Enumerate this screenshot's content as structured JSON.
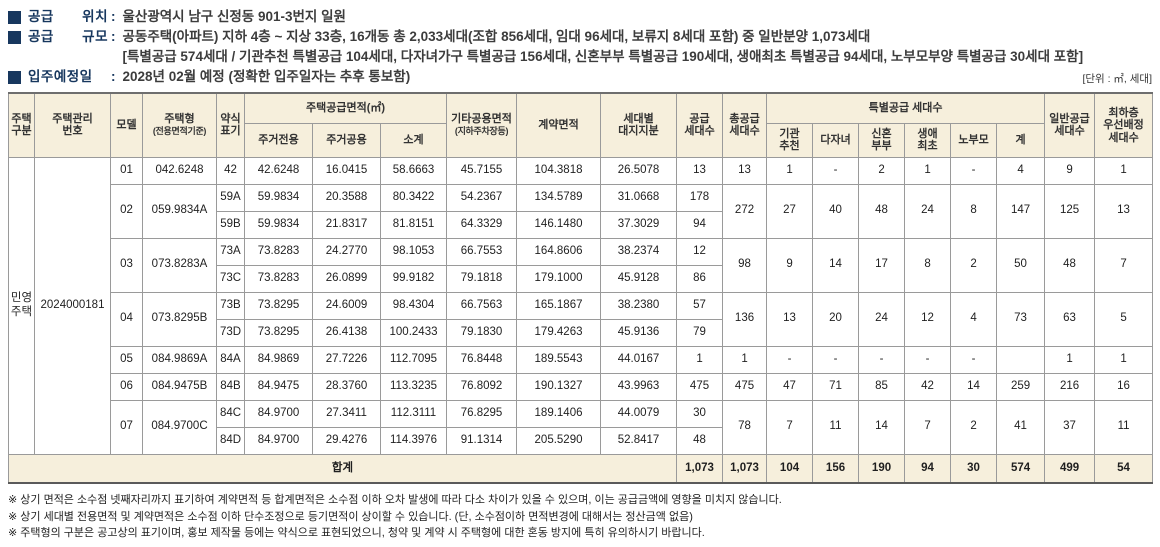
{
  "page": {
    "colon": ":",
    "unit_note": "[단위 : ㎡, 세대]"
  },
  "info": {
    "lines": [
      {
        "label": "공급 위치",
        "value": "울산광역시 남구 신정동 901-3번지 일원"
      },
      {
        "label": "공급 규모",
        "value": "공동주택(아파트) 지하 4층 ~ 지상 33층, 16개동 총 2,033세대(조합 856세대, 임대 96세대, 보류지 8세대 포함) 중 일반분양 1,073세대",
        "value2": "[특별공급 574세대 / 기관추천 특별공급 104세대, 다자녀가구 특별공급 156세대, 신혼부부 특별공급 190세대, 생애최초 특별공급 94세대, 노부모부양 특별공급 30세대 포함]"
      },
      {
        "label": "입주예정일",
        "value": "2028년 02월 예정 (정확한 입주일자는 추후 통보함)"
      }
    ]
  },
  "table": {
    "headers": {
      "housing_division": "주택\n구분",
      "management_number": "주택관리\n번호",
      "model": "모델",
      "unit_type": "주택형",
      "unit_type_sub": "(전용면적기준)",
      "abbr": "약식\n표기",
      "supply_area_group": "주택공급면적(㎡)",
      "exclusive": "주거전용",
      "common": "주거공용",
      "subtotal": "소계",
      "other_common": "기타공용면적",
      "other_common_sub": "(지하주차장등)",
      "contract": "계약면적",
      "land_share": "세대별\n대지지분",
      "supply_count": "공급\n세대수",
      "total_supply": "총공급\n세대수",
      "special_group": "특별공급 세대수",
      "special": [
        "기관\n추천",
        "다자녀",
        "신혼\n부부",
        "생애\n최초",
        "노부모",
        "계"
      ],
      "general_supply": "일반공급\n세대수",
      "lowest_floor": "최하층\n우선배정\n세대수"
    },
    "housing_division": "민영\n주택",
    "management_number": "2024000181",
    "special_keys": [
      "institution",
      "multi-child",
      "newlywed",
      "first-time",
      "elderly-parent",
      "sum"
    ],
    "groups": [
      {
        "model": "01",
        "unit_type": "042.6248",
        "rows": [
          {
            "abbr": "42",
            "exclusive": "42.6248",
            "common": "16.0415",
            "subtotal": "58.6663",
            "other": "45.7155",
            "contract": "104.3818",
            "land_share": "26.5078",
            "supply": "13"
          }
        ],
        "total_supply": "13",
        "special": [
          "1",
          "-",
          "2",
          "1",
          "-",
          "4"
        ],
        "general": "9",
        "lowest": "1"
      },
      {
        "model": "02",
        "unit_type": "059.9834A",
        "rows": [
          {
            "abbr": "59A",
            "exclusive": "59.9834",
            "common": "20.3588",
            "subtotal": "80.3422",
            "other": "54.2367",
            "contract": "134.5789",
            "land_share": "31.0668",
            "supply": "178"
          },
          {
            "abbr": "59B",
            "exclusive": "59.9834",
            "common": "21.8317",
            "subtotal": "81.8151",
            "other": "64.3329",
            "contract": "146.1480",
            "land_share": "37.3029",
            "supply": "94"
          }
        ],
        "total_supply": "272",
        "special": [
          "27",
          "40",
          "48",
          "24",
          "8",
          "147"
        ],
        "general": "125",
        "lowest": "13"
      },
      {
        "model": "03",
        "unit_type": "073.8283A",
        "rows": [
          {
            "abbr": "73A",
            "exclusive": "73.8283",
            "common": "24.2770",
            "subtotal": "98.1053",
            "other": "66.7553",
            "contract": "164.8606",
            "land_share": "38.2374",
            "supply": "12"
          },
          {
            "abbr": "73C",
            "exclusive": "73.8283",
            "common": "26.0899",
            "subtotal": "99.9182",
            "other": "79.1818",
            "contract": "179.1000",
            "land_share": "45.9128",
            "supply": "86"
          }
        ],
        "total_supply": "98",
        "special": [
          "9",
          "14",
          "17",
          "8",
          "2",
          "50"
        ],
        "general": "48",
        "lowest": "7"
      },
      {
        "model": "04",
        "unit_type": "073.8295B",
        "rows": [
          {
            "abbr": "73B",
            "exclusive": "73.8295",
            "common": "24.6009",
            "subtotal": "98.4304",
            "other": "66.7563",
            "contract": "165.1867",
            "land_share": "38.2380",
            "supply": "57"
          },
          {
            "abbr": "73D",
            "exclusive": "73.8295",
            "common": "26.4138",
            "subtotal": "100.2433",
            "other": "79.1830",
            "contract": "179.4263",
            "land_share": "45.9136",
            "supply": "79"
          }
        ],
        "total_supply": "136",
        "special": [
          "13",
          "20",
          "24",
          "12",
          "4",
          "73"
        ],
        "general": "63",
        "lowest": "5"
      },
      {
        "model": "05",
        "unit_type": "084.9869A",
        "rows": [
          {
            "abbr": "84A",
            "exclusive": "84.9869",
            "common": "27.7226",
            "subtotal": "112.7095",
            "other": "76.8448",
            "contract": "189.5543",
            "land_share": "44.0167",
            "supply": "1"
          }
        ],
        "total_supply": "1",
        "special": [
          "-",
          "-",
          "-",
          "-",
          "-",
          ""
        ],
        "general": "1",
        "lowest": "1"
      },
      {
        "model": "06",
        "unit_type": "084.9475B",
        "rows": [
          {
            "abbr": "84B",
            "exclusive": "84.9475",
            "common": "28.3760",
            "subtotal": "113.3235",
            "other": "76.8092",
            "contract": "190.1327",
            "land_share": "43.9963",
            "supply": "475"
          }
        ],
        "total_supply": "475",
        "special": [
          "47",
          "71",
          "85",
          "42",
          "14",
          "259"
        ],
        "general": "216",
        "lowest": "16"
      },
      {
        "model": "07",
        "unit_type": "084.9700C",
        "rows": [
          {
            "abbr": "84C",
            "exclusive": "84.9700",
            "common": "27.3411",
            "subtotal": "112.3111",
            "other": "76.8295",
            "contract": "189.1406",
            "land_share": "44.0079",
            "supply": "30"
          },
          {
            "abbr": "84D",
            "exclusive": "84.9700",
            "common": "29.4276",
            "subtotal": "114.3976",
            "other": "91.1314",
            "contract": "205.5290",
            "land_share": "52.8417",
            "supply": "48"
          }
        ],
        "total_supply": "78",
        "special": [
          "7",
          "11",
          "14",
          "7",
          "2",
          "41"
        ],
        "general": "37",
        "lowest": "11"
      }
    ],
    "total_row": {
      "label": "합계",
      "supply": "1,073",
      "total_supply": "1,073",
      "special": [
        "104",
        "156",
        "190",
        "94",
        "30",
        "574"
      ],
      "general": "499",
      "lowest": "54"
    }
  },
  "footnotes": [
    "※ 상기 면적은 소수점 넷째자리까지 표기하여 계약면적 등 합계면적은 소수점 이하 오차 발생에 따라 다소 차이가 있을 수 있으며, 이는 공급금액에 영향을 미치지 않습니다.",
    "※ 상기 세대별 전용면적 및 계약면적은 소수점 이하 단수조정으로 등기면적이 상이할 수 있습니다. (단, 소수점이하 면적변경에 대해서는 정산금액 없음)",
    "※ 주택형의 구분은 공고상의 표기이며, 홍보 제작물 등에는 약식으로 표현되었으니, 청약 및 계약 시 주택형에 대한 혼동 방지에 특히 유의하시기 바랍니다."
  ]
}
